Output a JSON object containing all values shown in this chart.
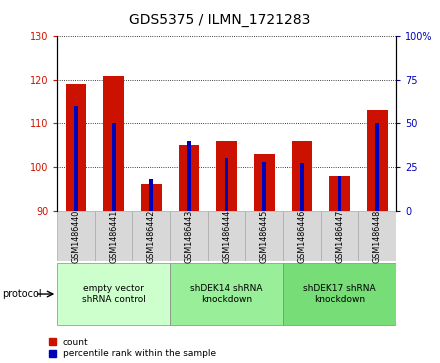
{
  "title": "GDS5375 / ILMN_1721283",
  "samples": [
    "GSM1486440",
    "GSM1486441",
    "GSM1486442",
    "GSM1486443",
    "GSM1486444",
    "GSM1486445",
    "GSM1486446",
    "GSM1486447",
    "GSM1486448"
  ],
  "count_values": [
    119.0,
    121.0,
    96.0,
    105.0,
    106.0,
    103.0,
    106.0,
    98.0,
    113.0
  ],
  "percentile_values": [
    60,
    50,
    18,
    40,
    30,
    28,
    27,
    20,
    50
  ],
  "left_ylim": [
    90,
    130
  ],
  "right_ylim": [
    0,
    100
  ],
  "left_yticks": [
    90,
    100,
    110,
    120,
    130
  ],
  "right_yticks": [
    0,
    25,
    50,
    75,
    100
  ],
  "right_yticklabels": [
    "0",
    "25",
    "50",
    "75",
    "100%"
  ],
  "bar_color_red": "#cc1100",
  "bar_color_blue": "#0000bb",
  "red_bar_width": 0.55,
  "blue_bar_width": 0.1,
  "groups": [
    {
      "label": "empty vector\nshRNA control",
      "indices": [
        0,
        1,
        2
      ],
      "color": "#ccffcc"
    },
    {
      "label": "shDEK14 shRNA\nknockdown",
      "indices": [
        3,
        4,
        5
      ],
      "color": "#99ee99"
    },
    {
      "label": "shDEK17 shRNA\nknockdown",
      "indices": [
        6,
        7,
        8
      ],
      "color": "#77dd77"
    }
  ],
  "protocol_label": "protocol",
  "legend_count": "count",
  "legend_percentile": "percentile rank within the sample",
  "title_fontsize": 10,
  "tick_fontsize": 7,
  "axis_label_color_left": "#cc1100",
  "axis_label_color_right": "#0000bb",
  "sample_box_color": "#d8d8d8",
  "sample_box_edge": "#aaaaaa"
}
